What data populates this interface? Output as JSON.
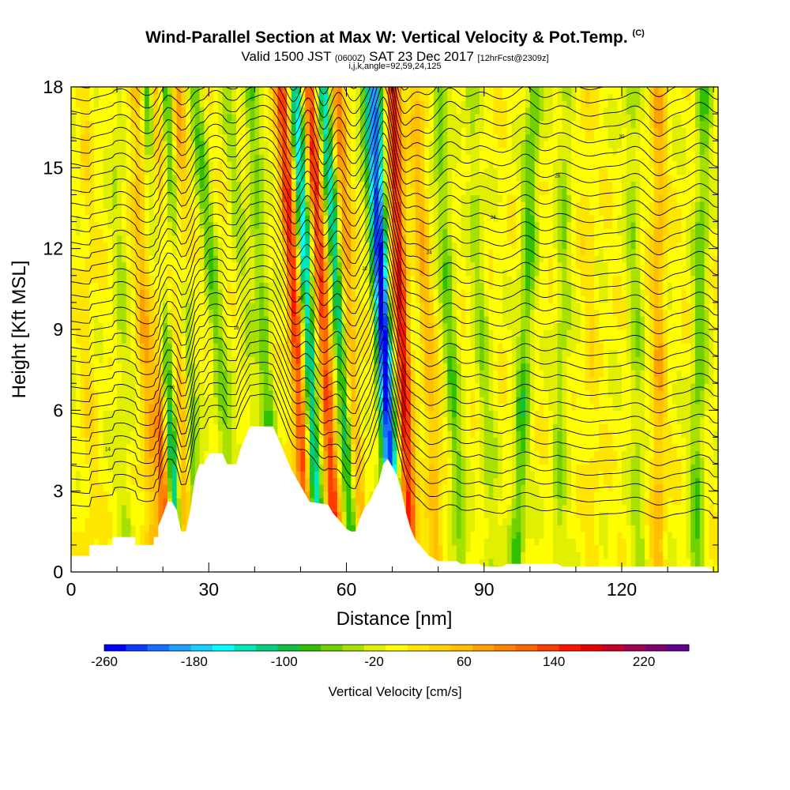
{
  "header": {
    "title": "Wind-Parallel Section at Max W: Vertical Velocity & Pot.Temp.",
    "title_mark": "(C)",
    "valid_prefix": "Valid 1500 JST",
    "valid_utc": "(0600Z)",
    "valid_date": "SAT 23 Dec 2017",
    "forecast": "[12hrFcst@2309z]",
    "params": "i,j,k,angle=92,59,24,125"
  },
  "chart_data": {
    "type": "heatmap",
    "title": "Wind-Parallel Section at Max W: Vertical Velocity & Pot.Temp.",
    "xlabel": "Distance [nm]",
    "ylabel": "Height [Kft MSL]",
    "xlim": [
      0,
      141
    ],
    "ylim": [
      0,
      18
    ],
    "x_ticks": [
      "0",
      "30",
      "60",
      "90",
      "120"
    ],
    "y_ticks": [
      "0",
      "3",
      "6",
      "9",
      "12",
      "15",
      "18"
    ],
    "colorbar": {
      "label": "Vertical Velocity [cm/s]",
      "range": [
        -260,
        260
      ],
      "tick_labels": [
        "-260",
        "-180",
        "-100",
        "-20",
        "60",
        "140",
        "220"
      ],
      "colors": [
        "#0000ff",
        "#0a3cff",
        "#1470ff",
        "#1ea0ff",
        "#14d0ff",
        "#00ffff",
        "#00e8b8",
        "#00d080",
        "#10c040",
        "#30c000",
        "#70d000",
        "#a8e000",
        "#e0f000",
        "#ffff00",
        "#ffe600",
        "#ffd200",
        "#ffbe00",
        "#ffa000",
        "#ff8200",
        "#ff6400",
        "#ff3c00",
        "#ff1400",
        "#e80000",
        "#c80028",
        "#a00050",
        "#800070",
        "#600090"
      ]
    },
    "terrain_profile_kft": [
      [
        0,
        0.6
      ],
      [
        4,
        0.6
      ],
      [
        4,
        1
      ],
      [
        9,
        1
      ],
      [
        9,
        1.3
      ],
      [
        14,
        1.3
      ],
      [
        14,
        1
      ],
      [
        18,
        1
      ],
      [
        18,
        1.3
      ],
      [
        19,
        1.3
      ],
      [
        19,
        1.7
      ],
      [
        20,
        2.1
      ],
      [
        21,
        2.6
      ],
      [
        22,
        2.6
      ],
      [
        23,
        2.3
      ],
      [
        24,
        1.5
      ],
      [
        25,
        1.5
      ],
      [
        26,
        2.3
      ],
      [
        27,
        3.5
      ],
      [
        28,
        4
      ],
      [
        29,
        4
      ],
      [
        30,
        4.4
      ],
      [
        33,
        4.4
      ],
      [
        34,
        4
      ],
      [
        36,
        4
      ],
      [
        37,
        4.6
      ],
      [
        38,
        5
      ],
      [
        39,
        5.4
      ],
      [
        44,
        5.4
      ],
      [
        45,
        5
      ],
      [
        46,
        4.6
      ],
      [
        47,
        4.2
      ],
      [
        48,
        3.8
      ],
      [
        49,
        3.5
      ],
      [
        50,
        3.2
      ],
      [
        51,
        2.9
      ],
      [
        52,
        2.6
      ],
      [
        56,
        2.5
      ],
      [
        57,
        2.2
      ],
      [
        58,
        2
      ],
      [
        59,
        1.8
      ],
      [
        60,
        1.6
      ],
      [
        61,
        1.5
      ],
      [
        62,
        1.5
      ],
      [
        63,
        2
      ],
      [
        64,
        2.4
      ],
      [
        65,
        2.6
      ],
      [
        66,
        3
      ],
      [
        67,
        3.3
      ],
      [
        68,
        4
      ],
      [
        69,
        4.2
      ],
      [
        70,
        3.9
      ],
      [
        71,
        3.6
      ],
      [
        72,
        3
      ],
      [
        73,
        2.2
      ],
      [
        74,
        1.6
      ],
      [
        75,
        1.2
      ],
      [
        76,
        1
      ],
      [
        77,
        0.8
      ],
      [
        78,
        0.6
      ],
      [
        79,
        0.5
      ],
      [
        80,
        0.4
      ],
      [
        84,
        0.4
      ],
      [
        85,
        0.3
      ],
      [
        89,
        0.3
      ],
      [
        90,
        0.2
      ],
      [
        94,
        0.2
      ],
      [
        95,
        0.3
      ],
      [
        106,
        0.3
      ],
      [
        107,
        0.2
      ],
      [
        139,
        0.2
      ],
      [
        140,
        0
      ],
      [
        141,
        0
      ]
    ],
    "vertical_velocity_features": [
      {
        "x_top": 18,
        "x_bottom": 21,
        "w": 160
      },
      {
        "x_top": 14,
        "x_bottom": 18,
        "w": 60
      },
      {
        "x_top": 23,
        "x_bottom": 25,
        "w": 90
      },
      {
        "x_top": 17,
        "x_bottom": 23,
        "w": -170
      },
      {
        "x_top": 21,
        "x_bottom": 28,
        "w": -90
      },
      {
        "x_top": 27,
        "x_bottom": 36,
        "w": -60
      },
      {
        "x_top": 34,
        "x_bottom": 42,
        "w": -30
      },
      {
        "x_top": 46,
        "x_bottom": 52,
        "w": 150
      },
      {
        "x_top": 52,
        "x_bottom": 58,
        "w": 140
      },
      {
        "x_top": 39,
        "x_bottom": 45,
        "w": -60
      },
      {
        "x_top": 49,
        "x_bottom": 54,
        "w": -150
      },
      {
        "x_top": 55,
        "x_bottom": 62,
        "w": -130
      },
      {
        "x_top": 58,
        "x_bottom": 63,
        "w": 90
      },
      {
        "x_top": 64,
        "x_bottom": 72,
        "w": -60
      },
      {
        "x_top": 66,
        "x_bottom": 70,
        "w": -200
      },
      {
        "x_top": 70,
        "x_bottom": 74,
        "w": 160
      },
      {
        "x_top": 75,
        "x_bottom": 80,
        "w": 60
      },
      {
        "x_top": 80,
        "x_bottom": 85,
        "w": -60
      },
      {
        "x_top": 87,
        "x_bottom": 92,
        "w": -40
      },
      {
        "x_top": 101,
        "x_bottom": 97,
        "w": -70
      },
      {
        "x_top": 108,
        "x_bottom": 106,
        "w": -40
      },
      {
        "x_top": 112,
        "x_bottom": 114,
        "w": 20
      },
      {
        "x_top": 122,
        "x_bottom": 124,
        "w": -40
      },
      {
        "x_top": 128,
        "x_bottom": 128,
        "w": 60
      },
      {
        "x_top": 138,
        "x_bottom": 136,
        "w": -60
      },
      {
        "x_top": 3,
        "x_bottom": 4,
        "w": 20
      },
      {
        "x_top": 10,
        "x_bottom": 12,
        "w": -30
      }
    ],
    "theta_contours": {
      "levels_count": 34,
      "base_height_kft": 2.0,
      "spacing_kft": 0.5,
      "labels": [
        "14",
        "16",
        "18",
        "20",
        "22",
        "24",
        "26",
        "28",
        "30"
      ]
    }
  }
}
